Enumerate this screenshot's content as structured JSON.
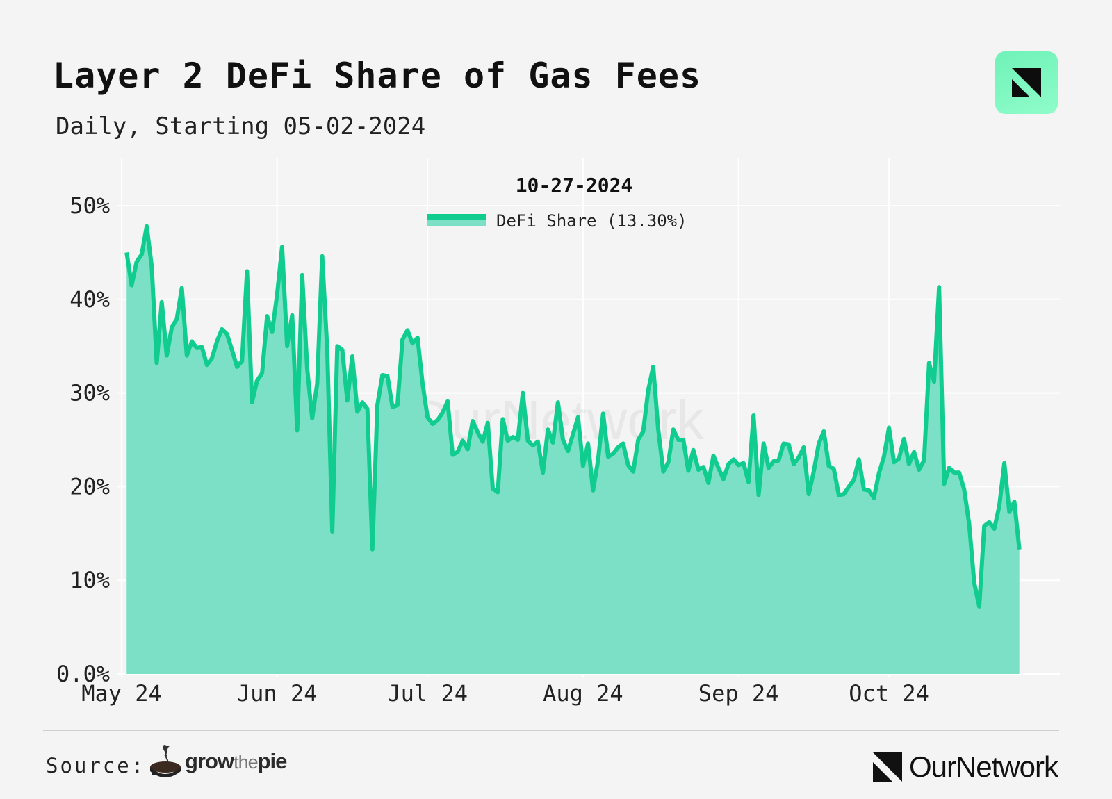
{
  "header": {
    "title": "Layer 2 DeFi Share of Gas Fees",
    "subtitle": "Daily, Starting 05-02-2024"
  },
  "footer": {
    "source_label": "Source:",
    "source_brand_pre": "grow",
    "source_brand_mid": "the",
    "source_brand_post": "pie",
    "publisher": "OurNetwork"
  },
  "colors": {
    "line": "#11cc8f",
    "fill": "#7ce0c6",
    "logo_badge": "#7ff5c0",
    "grid": "#ffffff"
  },
  "icons": [
    "ournetwork-logo-icon",
    "growthepie-logo-icon"
  ],
  "chart_data": {
    "type": "area",
    "title": "Layer 2 DeFi Share of Gas Fees",
    "subtitle": "Daily, Starting 05-02-2024",
    "hover_date": "10-27-2024",
    "legend_label": "DeFi Share (13.30%)",
    "legend_position": "top-center",
    "grid": true,
    "x_start": "2024-05-02",
    "x_end": "2024-10-27",
    "x_ticks": [
      {
        "date": "2024-05-01",
        "label": "May 24"
      },
      {
        "date": "2024-06-01",
        "label": "Jun 24"
      },
      {
        "date": "2024-07-01",
        "label": "Jul 24"
      },
      {
        "date": "2024-08-01",
        "label": "Aug 24"
      },
      {
        "date": "2024-09-01",
        "label": "Sep 24"
      },
      {
        "date": "2024-10-01",
        "label": "Oct 24"
      }
    ],
    "y_ticks": [
      {
        "value": 0,
        "label": "0.0%"
      },
      {
        "value": 10,
        "label": "10%"
      },
      {
        "value": 20,
        "label": "20%"
      },
      {
        "value": 30,
        "label": "30%"
      },
      {
        "value": 40,
        "label": "40%"
      },
      {
        "value": 50,
        "label": "50%"
      }
    ],
    "ylim": [
      0,
      55
    ],
    "series": [
      {
        "name": "DeFi Share",
        "unit": "%",
        "values": [
          45.0,
          41.5,
          44.0,
          44.8,
          47.8,
          43.5,
          33.2,
          39.7,
          34.0,
          37.0,
          37.9,
          41.2,
          34.0,
          35.5,
          34.8,
          34.9,
          33.0,
          33.7,
          35.5,
          36.8,
          36.3,
          34.6,
          32.8,
          33.4,
          43.0,
          29.0,
          31.3,
          32.1,
          38.2,
          36.5,
          40.5,
          45.6,
          35.0,
          38.3,
          26.0,
          42.6,
          32.6,
          27.3,
          31.0,
          44.6,
          34.5,
          15.2,
          35.0,
          34.6,
          29.2,
          33.9,
          28.0,
          29.0,
          28.3,
          13.3,
          28.7,
          31.9,
          31.8,
          28.5,
          28.7,
          35.7,
          36.7,
          35.3,
          35.9,
          31.0,
          27.4,
          26.7,
          27.1,
          27.9,
          29.1,
          23.4,
          23.7,
          24.9,
          24.0,
          27.0,
          25.8,
          24.8,
          26.8,
          19.8,
          19.4,
          27.2,
          24.9,
          25.3,
          25.0,
          30.0,
          24.9,
          24.4,
          24.8,
          21.5,
          26.1,
          24.7,
          29.0,
          25.0,
          23.8,
          25.6,
          27.4,
          22.2,
          24.6,
          19.6,
          22.8,
          27.8,
          23.2,
          23.5,
          24.2,
          24.6,
          22.3,
          21.6,
          25.0,
          25.9,
          30.3,
          32.8,
          26.1,
          21.6,
          22.6,
          26.1,
          25.0,
          25.0,
          21.7,
          23.9,
          21.8,
          22.1,
          20.4,
          23.3,
          22.0,
          20.8,
          22.4,
          22.9,
          22.3,
          22.5,
          20.5,
          27.6,
          19.1,
          24.6,
          22.0,
          22.7,
          22.8,
          24.6,
          24.5,
          22.4,
          23.1,
          24.2,
          19.2,
          21.6,
          24.6,
          25.9,
          22.2,
          21.9,
          19.1,
          19.2,
          20.0,
          20.7,
          22.9,
          19.7,
          19.6,
          18.8,
          21.4,
          23.2,
          26.3,
          22.6,
          23.0,
          25.1,
          22.4,
          23.7,
          21.8,
          22.8,
          33.2,
          31.2,
          41.3,
          20.3,
          22.0,
          21.5,
          21.5,
          19.7,
          16.0,
          9.7,
          7.2,
          15.8,
          16.2,
          15.5,
          17.9,
          22.5,
          17.3,
          18.4,
          13.3
        ]
      }
    ]
  }
}
